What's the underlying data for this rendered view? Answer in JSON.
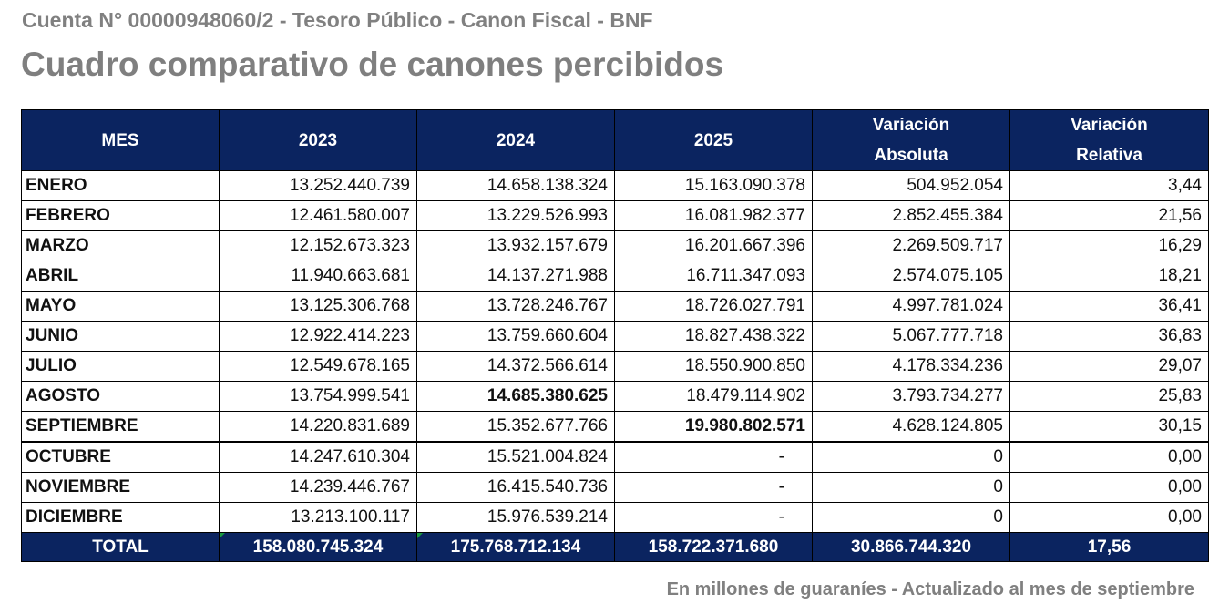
{
  "header": {
    "subtitle": "Cuenta N° 00000948060/2 - Tesoro Público - Canon Fiscal - BNF",
    "title": "Cuadro comparativo de canones percibidos"
  },
  "table": {
    "columns": [
      "MES",
      "2023",
      "2024",
      "2025",
      "Variación Absoluta",
      "Variación Relativa"
    ],
    "column_lines": {
      "var_abs": [
        "Variación",
        "Absoluta"
      ],
      "var_rel": [
        "Variación",
        "Relativa"
      ]
    },
    "rows": [
      {
        "mes": "ENERO",
        "y2023": "13.252.440.739",
        "y2024": "14.658.138.324",
        "y2025": "15.163.090.378",
        "var_abs": "504.952.054",
        "var_rel": "3,44"
      },
      {
        "mes": "FEBRERO",
        "y2023": "12.461.580.007",
        "y2024": "13.229.526.993",
        "y2025": "16.081.982.377",
        "var_abs": "2.852.455.384",
        "var_rel": "21,56"
      },
      {
        "mes": "MARZO",
        "y2023": "12.152.673.323",
        "y2024": "13.932.157.679",
        "y2025": "16.201.667.396",
        "var_abs": "2.269.509.717",
        "var_rel": "16,29"
      },
      {
        "mes": "ABRIL",
        "y2023": "11.940.663.681",
        "y2024": "14.137.271.988",
        "y2025": "16.711.347.093",
        "var_abs": "2.574.075.105",
        "var_rel": "18,21"
      },
      {
        "mes": "MAYO",
        "y2023": "13.125.306.768",
        "y2024": "13.728.246.767",
        "y2025": "18.726.027.791",
        "var_abs": "4.997.781.024",
        "var_rel": "36,41"
      },
      {
        "mes": "JUNIO",
        "y2023": "12.922.414.223",
        "y2024": "13.759.660.604",
        "y2025": "18.827.438.322",
        "var_abs": "5.067.777.718",
        "var_rel": "36,83"
      },
      {
        "mes": "JULIO",
        "y2023": "12.549.678.165",
        "y2024": "14.372.566.614",
        "y2025": "18.550.900.850",
        "var_abs": "4.178.334.236",
        "var_rel": "29,07"
      },
      {
        "mes": "AGOSTO",
        "y2023": "13.754.999.541",
        "y2024": "14.685.380.625",
        "y2025": "18.479.114.902",
        "var_abs": "3.793.734.277",
        "var_rel": "25,83"
      },
      {
        "mes": "SEPTIEMBRE",
        "y2023": "14.220.831.689",
        "y2024": "15.352.677.766",
        "y2025": "19.980.802.571",
        "var_abs": "4.628.124.805",
        "var_rel": "30,15"
      },
      {
        "mes": "OCTUBRE",
        "y2023": "14.247.610.304",
        "y2024": "15.521.004.824",
        "y2025": "-",
        "var_abs": "0",
        "var_rel": "0,00"
      },
      {
        "mes": "NOVIEMBRE",
        "y2023": "14.239.446.767",
        "y2024": "16.415.540.736",
        "y2025": "-",
        "var_abs": "0",
        "var_rel": "0,00"
      },
      {
        "mes": "DICIEMBRE",
        "y2023": "13.213.100.117",
        "y2024": "15.976.539.214",
        "y2025": "-",
        "var_abs": "0",
        "var_rel": "0,00"
      }
    ],
    "total": {
      "mes": "TOTAL",
      "y2023": "158.080.745.324",
      "y2024": "175.768.712.134",
      "y2025": "158.722.371.680",
      "var_abs": "30.866.744.320",
      "var_rel": "17,56"
    }
  },
  "footnote": "En millones de guaraníes - Actualizado al mes de septiembre",
  "colors": {
    "header_bg": "#0b2460",
    "header_text": "#ffffff",
    "title_gray": "#7f7f7f",
    "corner_mark": "#1a9a40"
  }
}
